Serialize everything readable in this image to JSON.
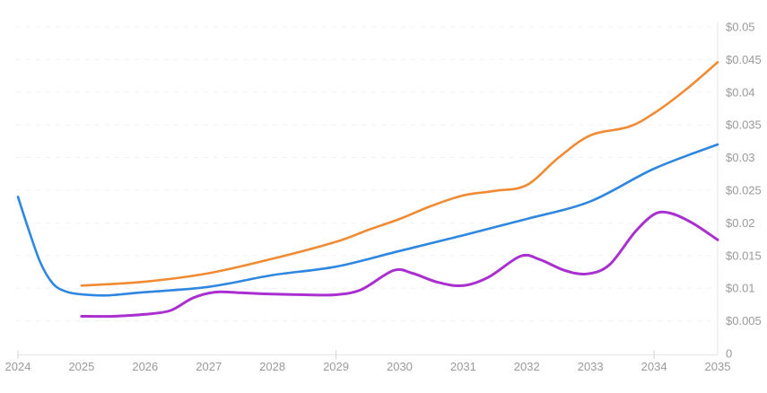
{
  "chart_data": {
    "type": "line",
    "title": "",
    "legend": "none",
    "grid": "horizontal-dashed",
    "background": "#ffffff",
    "axis_color": "#e8e8e8",
    "tick_color": "#d9d9d9",
    "gridline_color": "#f0f0f0",
    "label_color": "#9a9a9a",
    "xlim": [
      2024,
      2035
    ],
    "ylim": [
      0,
      0.05
    ],
    "x_ticks": [
      {
        "year": 2024,
        "label": "2024"
      },
      {
        "year": 2025,
        "label": "2025"
      },
      {
        "year": 2026,
        "label": "2026"
      },
      {
        "year": 2027,
        "label": "2027"
      },
      {
        "year": 2028,
        "label": "2028"
      },
      {
        "year": 2029,
        "label": "2029"
      },
      {
        "year": 2030,
        "label": "2030"
      },
      {
        "year": 2031,
        "label": "2031"
      },
      {
        "year": 2032,
        "label": "2032"
      },
      {
        "year": 2033,
        "label": "2033"
      },
      {
        "year": 2034,
        "label": "2034"
      },
      {
        "year": 2035,
        "label": "2035"
      }
    ],
    "x_major_tick_years": [
      2024,
      2029,
      2034
    ],
    "y_ticks": [
      {
        "value": 0,
        "label": "0"
      },
      {
        "value": 0.005,
        "label": "$0.005"
      },
      {
        "value": 0.01,
        "label": "$0.01"
      },
      {
        "value": 0.015,
        "label": "$0.015"
      },
      {
        "value": 0.02,
        "label": "$0.02"
      },
      {
        "value": 0.025,
        "label": "$0.025"
      },
      {
        "value": 0.03,
        "label": "$0.03"
      },
      {
        "value": 0.035,
        "label": "$0.035"
      },
      {
        "value": 0.04,
        "label": "$0.04"
      },
      {
        "value": 0.045,
        "label": "$0.045"
      },
      {
        "value": 0.05,
        "label": "$0.05"
      }
    ],
    "series": [
      {
        "name": "blue-line",
        "color": "#2f87e0",
        "stroke_width": 2.6,
        "points": [
          [
            2024.0,
            0.024
          ],
          [
            2024.15,
            0.0195
          ],
          [
            2024.35,
            0.014
          ],
          [
            2024.55,
            0.0107
          ],
          [
            2024.75,
            0.0095
          ],
          [
            2025.0,
            0.00905
          ],
          [
            2025.4,
            0.0089
          ],
          [
            2026.0,
            0.0094
          ],
          [
            2027.0,
            0.0102
          ],
          [
            2028.0,
            0.012
          ],
          [
            2029.0,
            0.0133
          ],
          [
            2030.0,
            0.0157
          ],
          [
            2031.0,
            0.0181
          ],
          [
            2032.0,
            0.0206
          ],
          [
            2033.0,
            0.0233
          ],
          [
            2034.0,
            0.0283
          ],
          [
            2035.0,
            0.032
          ]
        ]
      },
      {
        "name": "orange-line",
        "color": "#f08b33",
        "stroke_width": 2.6,
        "points": [
          [
            2025.0,
            0.0104
          ],
          [
            2026.0,
            0.011
          ],
          [
            2027.0,
            0.0123
          ],
          [
            2028.0,
            0.0145
          ],
          [
            2029.0,
            0.0171
          ],
          [
            2029.5,
            0.0189
          ],
          [
            2030.0,
            0.0206
          ],
          [
            2030.5,
            0.0226
          ],
          [
            2031.0,
            0.0242
          ],
          [
            2031.5,
            0.0249
          ],
          [
            2032.0,
            0.0258
          ],
          [
            2032.5,
            0.03
          ],
          [
            2033.0,
            0.0334
          ],
          [
            2033.6,
            0.0347
          ],
          [
            2034.0,
            0.0368
          ],
          [
            2034.5,
            0.0404
          ],
          [
            2035.0,
            0.0446
          ]
        ]
      },
      {
        "name": "purple-line",
        "color": "#a92fd0",
        "stroke_width": 3,
        "points": [
          [
            2025.0,
            0.0057
          ],
          [
            2025.5,
            0.0057
          ],
          [
            2026.0,
            0.006
          ],
          [
            2026.4,
            0.0066
          ],
          [
            2026.75,
            0.0085
          ],
          [
            2027.1,
            0.0094
          ],
          [
            2027.5,
            0.0093
          ],
          [
            2028.0,
            0.0091
          ],
          [
            2028.5,
            0.009
          ],
          [
            2029.0,
            0.009
          ],
          [
            2029.4,
            0.0098
          ],
          [
            2029.9,
            0.0127
          ],
          [
            2030.2,
            0.0123
          ],
          [
            2030.6,
            0.0109
          ],
          [
            2031.0,
            0.0104
          ],
          [
            2031.4,
            0.0117
          ],
          [
            2031.9,
            0.0149
          ],
          [
            2032.2,
            0.0144
          ],
          [
            2032.6,
            0.0127
          ],
          [
            2032.95,
            0.0122
          ],
          [
            2033.3,
            0.0136
          ],
          [
            2033.7,
            0.0186
          ],
          [
            2034.0,
            0.0213
          ],
          [
            2034.25,
            0.0215
          ],
          [
            2034.6,
            0.02
          ],
          [
            2035.0,
            0.0174
          ]
        ]
      }
    ]
  }
}
